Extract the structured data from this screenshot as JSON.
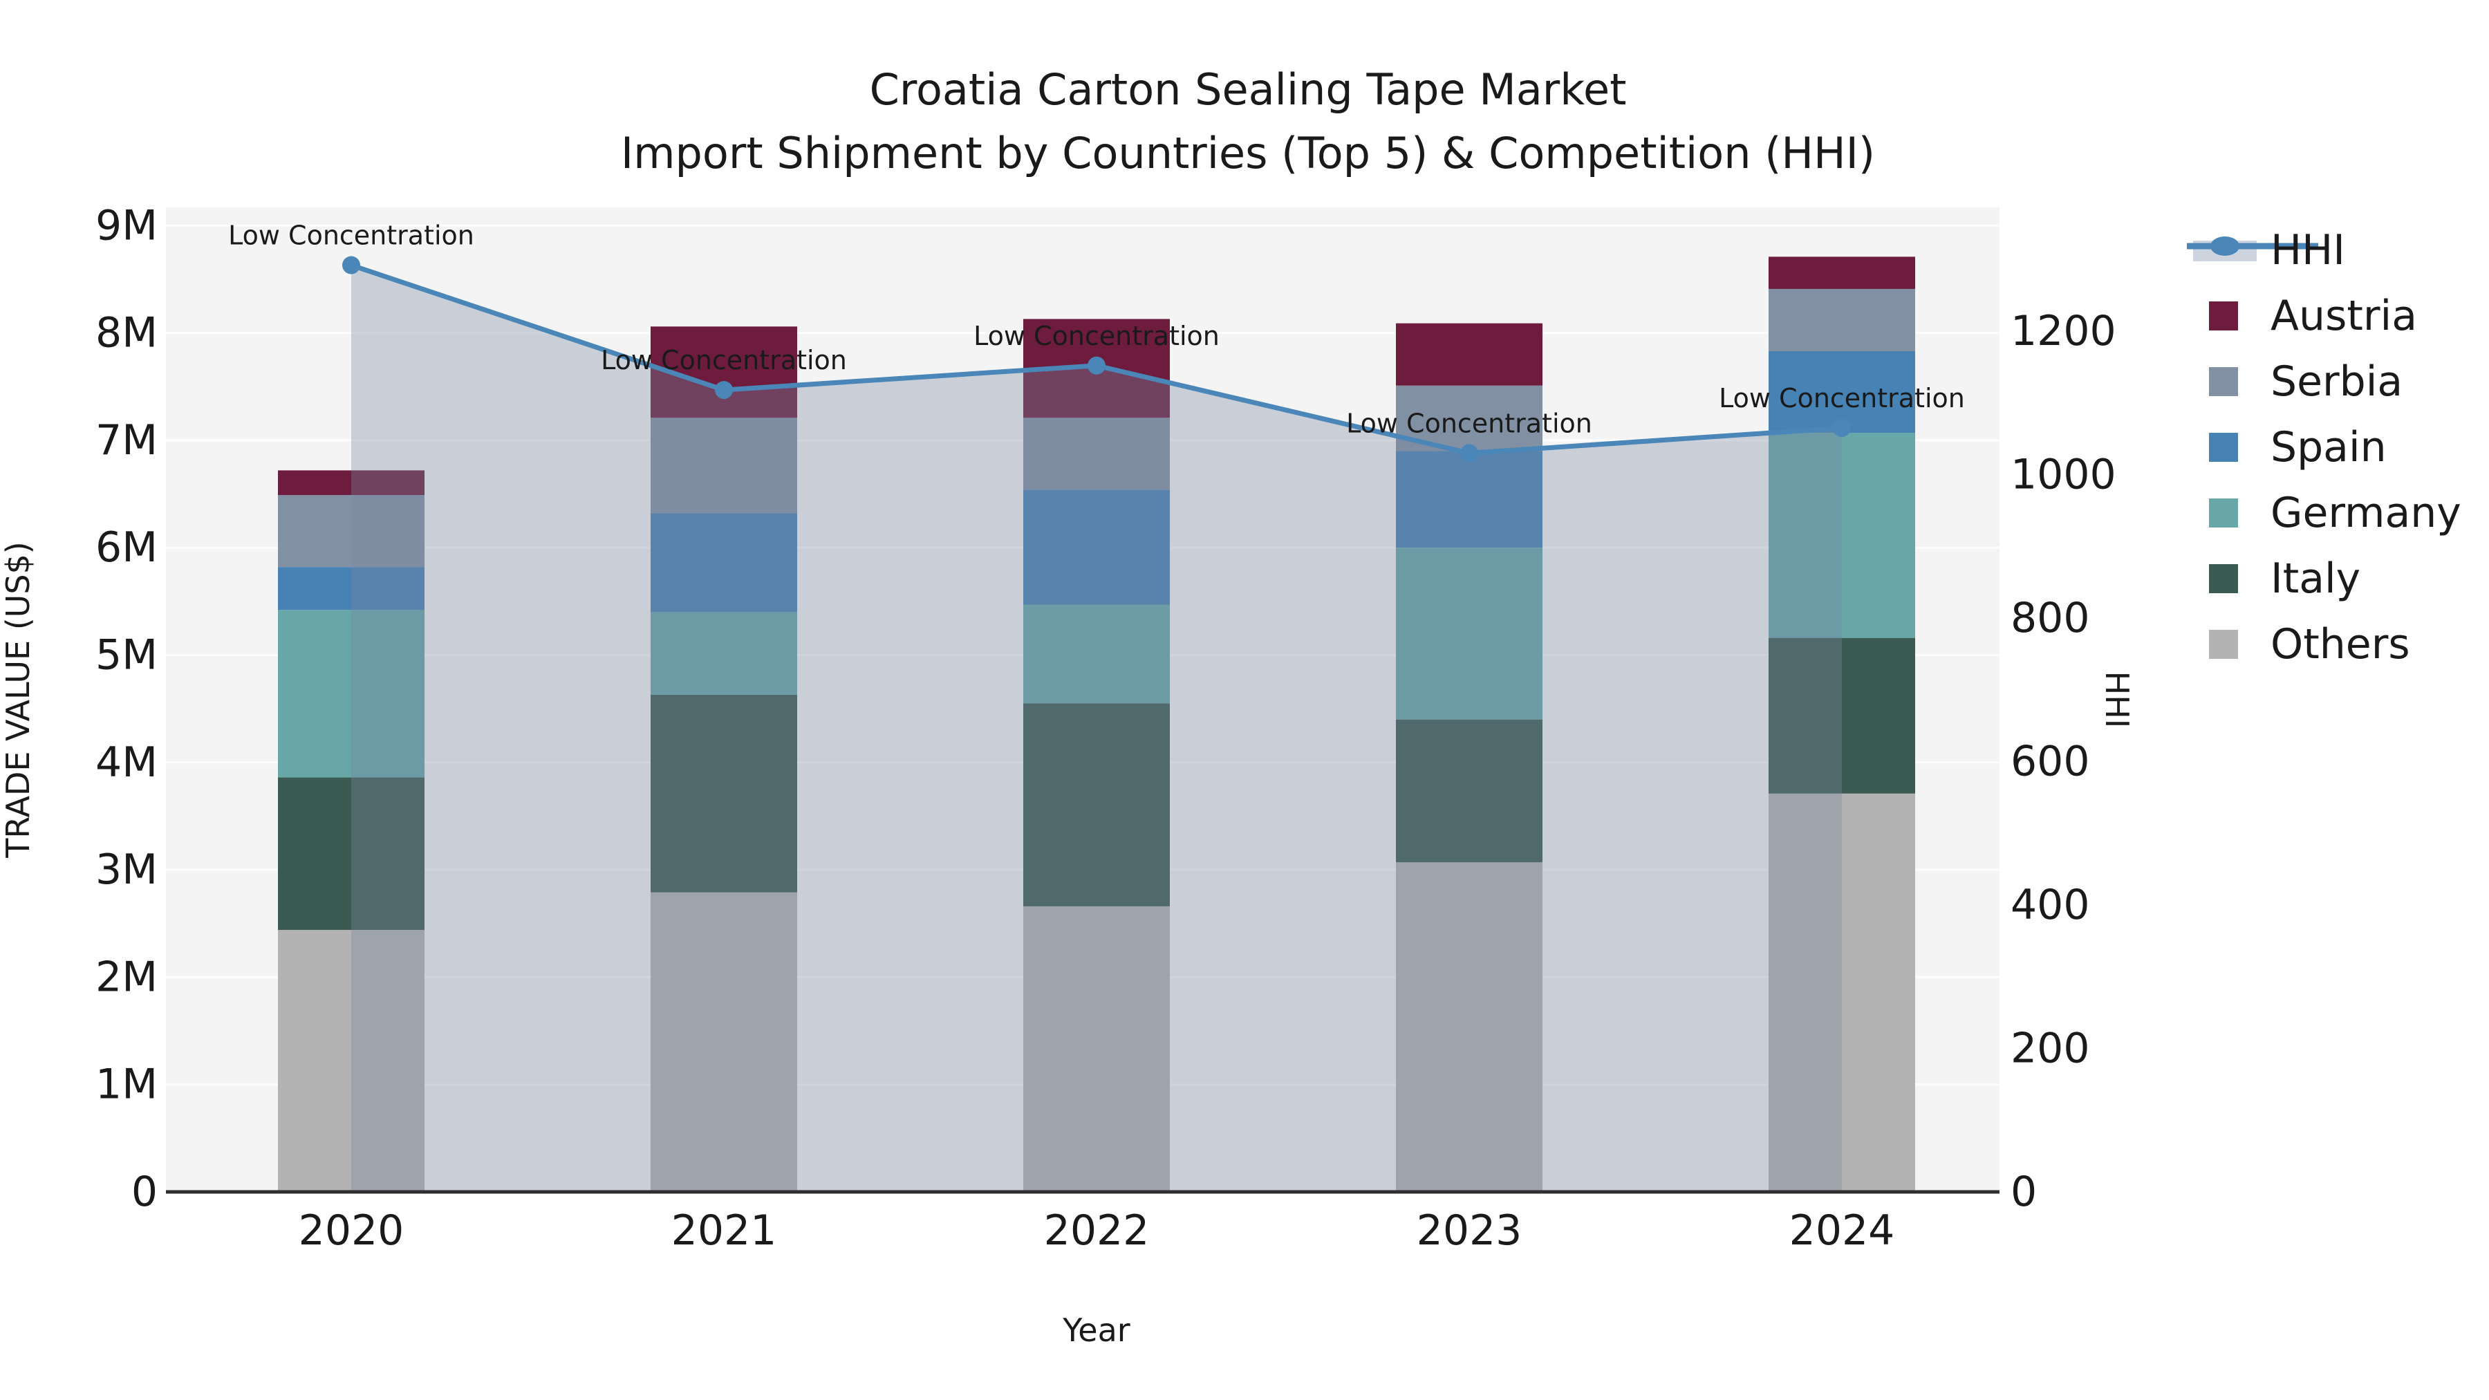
{
  "title": {
    "line1": "Croatia Carton Sealing Tape Market",
    "line2": "Import Shipment by Countries (Top 5) & Competition (HHI)"
  },
  "axes": {
    "x": {
      "label": "Year",
      "ticks": [
        "2020",
        "2021",
        "2022",
        "2023",
        "2024"
      ]
    },
    "y_left": {
      "label": "TRADE VALUE (US$)",
      "ticks": [
        "0",
        "1M",
        "2M",
        "3M",
        "4M",
        "5M",
        "6M",
        "7M",
        "8M",
        "9M"
      ]
    },
    "y_right": {
      "label": "HHI",
      "ticks": [
        "0",
        "200",
        "400",
        "600",
        "800",
        "1000",
        "1200"
      ]
    }
  },
  "legend": {
    "items": [
      "HHI",
      "Austria",
      "Serbia",
      "Spain",
      "Germany",
      "Italy",
      "Others"
    ]
  },
  "annotations": {
    "label": "Low Concentration"
  },
  "colors": {
    "plot_background": "#f4f4f4",
    "gridline": "#ffffff",
    "axis_line": "#2e2e2e",
    "hhi_line": "#4A86B8",
    "hhi_area": "#7888A0",
    "hhi_area_opacity": "0.35",
    "legend_band": "#CDD4DE",
    "text": "#1a1a1a"
  },
  "chart_data": {
    "type": "bar+line",
    "title": "Croatia Carton Sealing Tape Market — Import Shipment by Countries (Top 5) & Competition (HHI)",
    "categories": [
      "2020",
      "2021",
      "2022",
      "2023",
      "2024"
    ],
    "stack_order_bottom_to_top": [
      "Others",
      "Italy",
      "Germany",
      "Spain",
      "Serbia",
      "Austria"
    ],
    "units": "millions of US$",
    "series": [
      {
        "name": "Austria",
        "color": "#6D1C3E",
        "values": [
          0.23,
          0.85,
          0.92,
          0.58,
          0.3
        ]
      },
      {
        "name": "Serbia",
        "color": "#8191A3",
        "values": [
          0.67,
          0.89,
          0.67,
          0.61,
          0.58
        ]
      },
      {
        "name": "Spain",
        "color": "#4682B4",
        "values": [
          0.4,
          0.92,
          1.07,
          0.9,
          0.76
        ]
      },
      {
        "name": "Germany",
        "color": "#68A7A8",
        "values": [
          1.56,
          0.77,
          0.92,
          1.6,
          1.91
        ]
      },
      {
        "name": "Italy",
        "color": "#3A5A52",
        "values": [
          1.42,
          1.84,
          1.89,
          1.33,
          1.45
        ]
      },
      {
        "name": "Others",
        "color": "#B3B3B3",
        "values": [
          2.44,
          2.79,
          2.66,
          3.07,
          3.71
        ]
      }
    ],
    "bar_totals": [
      6.72,
      8.06,
      8.13,
      8.09,
      8.71
    ],
    "line_series": {
      "name": "HHI",
      "axis": "right",
      "color": "#4A86B8",
      "values": [
        1292,
        1118,
        1152,
        1030,
        1065
      ],
      "point_labels": [
        "Low Concentration",
        "Low Concentration",
        "Low Concentration",
        "Low Concentration",
        "Low Concentration"
      ]
    },
    "xlabel": "Year",
    "ylabel_left": "TRADE VALUE (US$)",
    "ylabel_right": "HHI",
    "ylim_left": [
      0,
      9000000
    ],
    "ylim_right": [
      0,
      1373
    ],
    "grid": "horizontal",
    "legend_position": "right"
  }
}
